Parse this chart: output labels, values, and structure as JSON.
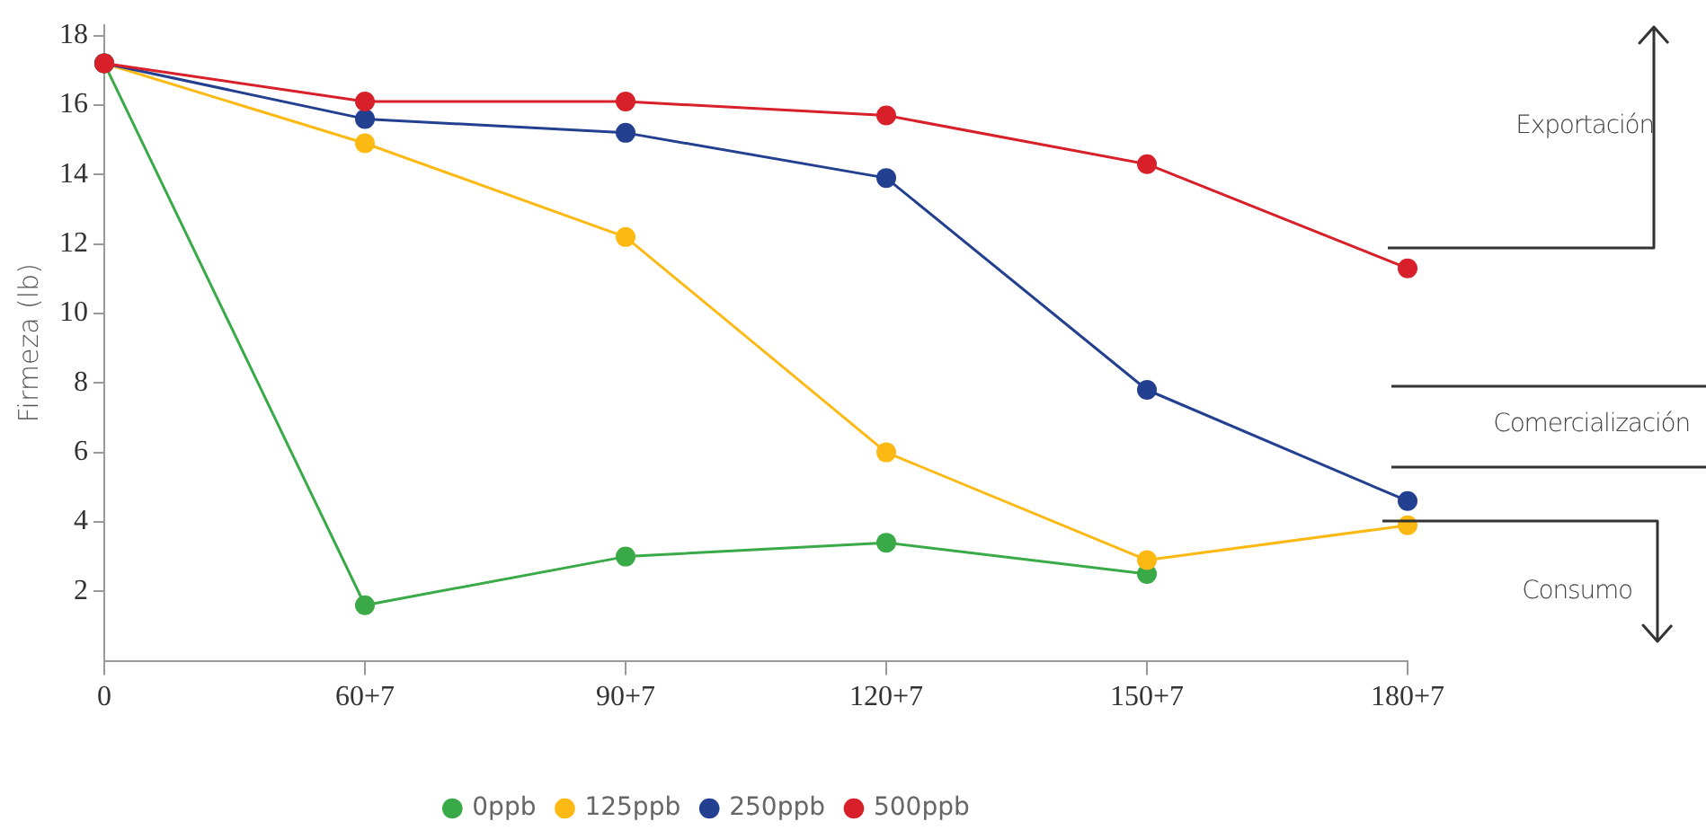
{
  "chart_data": {
    "type": "line",
    "ylabel": "Firmeza (lb)",
    "categories": [
      "0",
      "60+7",
      "90+7",
      "120+7",
      "150+7",
      "180+7"
    ],
    "series": [
      {
        "name": "0ppb",
        "color": "#3aaa48",
        "values": [
          17.2,
          1.6,
          3.0,
          3.4,
          2.5,
          null
        ]
      },
      {
        "name": "125ppb",
        "color": "#fdb913",
        "values": [
          17.2,
          14.9,
          12.2,
          6.0,
          2.9,
          3.9
        ]
      },
      {
        "name": "250ppb",
        "color": "#233f8f",
        "values": [
          17.2,
          15.6,
          15.2,
          13.9,
          7.8,
          4.6
        ]
      },
      {
        "name": "500ppb",
        "color": "#d7202a",
        "values": [
          17.2,
          16.1,
          16.1,
          15.7,
          14.3,
          11.3
        ]
      }
    ],
    "ylim": [
      0,
      18.3
    ],
    "yticks": [
      2,
      4,
      6,
      8,
      10,
      12,
      14,
      16,
      18
    ],
    "grid": false,
    "legend": "bottom",
    "marker": "circle",
    "line_style": "solid",
    "annotations": [
      "Exportación",
      "Comercialización",
      "Consumo"
    ]
  }
}
